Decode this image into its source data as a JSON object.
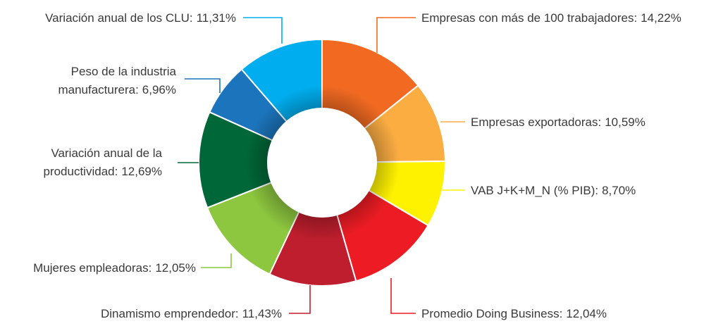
{
  "chart_data": {
    "type": "donut",
    "categories": [
      "Empresas con más de 100 trabajadores:",
      "Empresas exportadoras:",
      "VAB J+K+M_N (% PIB):",
      "Promedio Doing Business:",
      "Dinamismo emprendedor:",
      "Mujeres empleadoras:",
      "Variación anual de la\nproductividad:",
      "Peso de la industria\nmanufacturera:",
      "Variación anual de los CLU:"
    ],
    "values": [
      14.22,
      10.59,
      8.7,
      12.04,
      11.43,
      12.05,
      12.69,
      6.96,
      11.31
    ],
    "value_labels": [
      "14,22%",
      "10,59%",
      "8,70%",
      "12,04%",
      "11,43%",
      "12,05%",
      "12,69%",
      "6,96%",
      "11,31%"
    ],
    "colors": [
      "#f26a22",
      "#fbad42",
      "#fff200",
      "#ed1c24",
      "#be1e2d",
      "#8dc63f",
      "#006838",
      "#1c75bc",
      "#00aeef"
    ]
  }
}
